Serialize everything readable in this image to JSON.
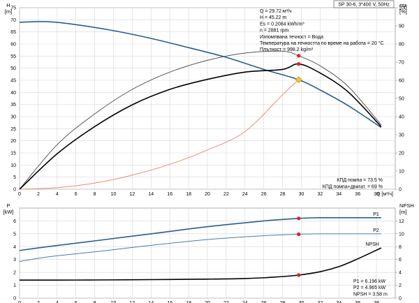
{
  "chart_data": [
    {
      "type": "line",
      "panel": "upper",
      "header": "SP 30-6, 3*400 V, 50Hz",
      "left_axis": {
        "label": "H",
        "unit": "[m]",
        "range": [
          0,
          75
        ],
        "ticks": [
          "0",
          "5",
          "10",
          "15",
          "20",
          "25",
          "30",
          "35",
          "40",
          "45",
          "50",
          "55",
          "60",
          "65",
          "70",
          "75"
        ]
      },
      "right_axis": {
        "label": "eta",
        "unit": "[%]",
        "range": [
          0,
          100
        ],
        "ticks": [
          "0",
          "10",
          "20",
          "30",
          "40",
          "50",
          "60",
          "70",
          "80",
          "90",
          "100"
        ]
      },
      "x_axis": {
        "label": "Q [м³/ч]",
        "range": [
          0,
          40
        ],
        "ticks": [
          "0",
          "2",
          "4",
          "6",
          "8",
          "10",
          "12",
          "14",
          "16",
          "18",
          "20",
          "22",
          "24",
          "26",
          "28",
          "30",
          "32",
          "34",
          "36",
          "38"
        ]
      },
      "grid": true,
      "info_text": [
        "Q = 29.72 м³/ч",
        "H = 45.22 m",
        "Es = 0.2084 kWh/m³",
        "n = 2881 rpm",
        "Изпомпвана течност = Вода",
        "Температура на течността по време на работа = 20 °C",
        "Плътност = 998.2 kg/m³"
      ],
      "legend_text": [
        "КПД помпа = 73.5 %",
        "КПД помпа+двигат. = 69 %"
      ],
      "series": [
        {
          "axis": "left",
          "color": "#2a5d8f",
          "x": [
            0,
            3,
            6,
            10,
            14,
            18,
            22,
            26,
            29.72,
            32,
            35,
            38.5
          ],
          "y": [
            69,
            69.2,
            68,
            65.5,
            62.3,
            58.5,
            54.5,
            49.5,
            45.22,
            41,
            34.5,
            25.5
          ]
        },
        {
          "axis": "left",
          "color": "#ee8877",
          "x": [
            0,
            4,
            8,
            12,
            16,
            20,
            24,
            28,
            29.72
          ],
          "y": [
            0,
            0.6,
            2.5,
            5.8,
            10.3,
            16.2,
            23.8,
            39,
            45.22
          ]
        },
        {
          "axis": "right",
          "color": "#555555",
          "x": [
            0,
            4,
            8,
            12,
            16,
            20,
            24,
            28,
            29.72,
            32,
            35,
            38.5
          ],
          "y": [
            0,
            24.5,
            41.5,
            55,
            64.5,
            71,
            75,
            76,
            73.5,
            68,
            56.5,
            35.5
          ]
        },
        {
          "axis": "right",
          "color": "#000000",
          "x": [
            0,
            4,
            8,
            12,
            16,
            20,
            24,
            28,
            29.72,
            32,
            35,
            38.5
          ],
          "y": [
            0,
            19.5,
            34.5,
            46.5,
            55,
            60.5,
            64.5,
            66,
            69,
            64,
            53.5,
            34.5
          ]
        }
      ],
      "markers": [
        {
          "axis": "left",
          "x": 29.72,
          "y": 45.22,
          "color": "#f2c531",
          "shape": "diamond"
        },
        {
          "axis": "right",
          "x": 29.72,
          "y": 73.5,
          "color": "#e02020",
          "shape": "dot"
        },
        {
          "axis": "right",
          "x": 29.72,
          "y": 69,
          "color": "#e02020",
          "shape": "dot"
        }
      ]
    },
    {
      "type": "line",
      "panel": "lower",
      "left_axis": {
        "label": "P",
        "unit": "[kW]",
        "range": [
          0,
          7
        ],
        "ticks": [
          "0",
          "1",
          "2",
          "3",
          "4",
          "5",
          "6"
        ]
      },
      "right_axis": {
        "label": "NPSH",
        "unit": "[m]",
        "range": [
          0,
          14
        ],
        "ticks": [
          "0",
          "2",
          "4",
          "6",
          "8",
          "10",
          "12"
        ]
      },
      "x_axis": {
        "range": [
          0,
          40
        ],
        "ticks": [
          "0",
          "2",
          "4",
          "6",
          "8",
          "10",
          "12",
          "14",
          "16",
          "18",
          "20",
          "22",
          "24",
          "26",
          "28",
          "30",
          "32",
          "34",
          "36",
          "38"
        ]
      },
      "grid": true,
      "info_text": [
        "P1 = 6.196 kW",
        "P2 = 4.965 kW",
        "NPSH = 3.58 m"
      ],
      "series": [
        {
          "name": "P1",
          "axis": "left",
          "color": "#2a5d8f",
          "x": [
            0,
            3,
            8,
            14,
            20,
            26,
            29.72,
            32,
            35,
            38.5
          ],
          "y": [
            3.7,
            4.0,
            4.45,
            5.0,
            5.55,
            6.0,
            6.196,
            6.25,
            6.25,
            6.25
          ]
        },
        {
          "name": "P2",
          "axis": "left",
          "color": "#4b79b0",
          "x": [
            0,
            3,
            8,
            14,
            20,
            26,
            29.72,
            32,
            35,
            38.5
          ],
          "y": [
            2.85,
            3.2,
            3.6,
            4.1,
            4.55,
            4.85,
            4.965,
            5.0,
            5.0,
            5.0
          ]
        },
        {
          "name": "NPSH",
          "axis": "right",
          "color": "#000000",
          "x": [
            0,
            4,
            8,
            12,
            16,
            20,
            24,
            27,
            29.72,
            32,
            34,
            36,
            38.5
          ],
          "y": [
            2.8,
            2.8,
            2.82,
            2.85,
            2.9,
            2.95,
            3.05,
            3.25,
            3.58,
            4.1,
            4.9,
            6.1,
            7.8
          ]
        }
      ],
      "markers": [
        {
          "axis": "left",
          "x": 29.72,
          "y": 6.196,
          "color": "#e02020",
          "shape": "dot"
        },
        {
          "axis": "left",
          "x": 29.72,
          "y": 4.965,
          "color": "#e02020",
          "shape": "dot"
        },
        {
          "axis": "right",
          "x": 29.72,
          "y": 3.58,
          "color": "#e02020",
          "shape": "dot"
        }
      ]
    }
  ]
}
